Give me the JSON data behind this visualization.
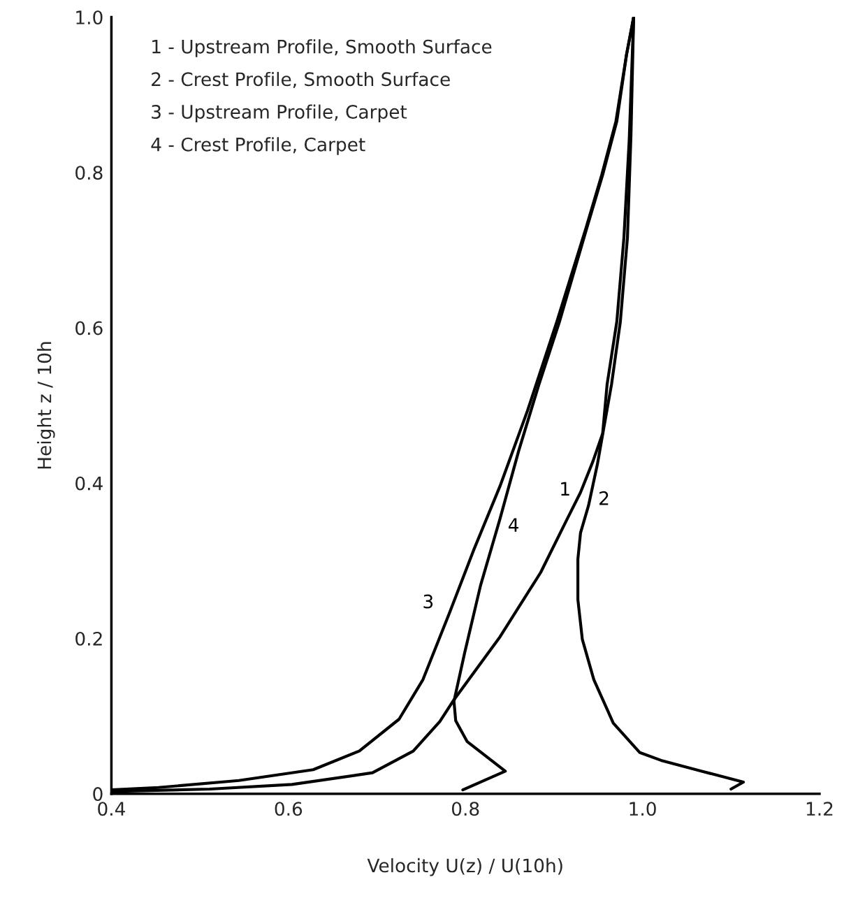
{
  "chart_data": {
    "type": "line",
    "xlabel": "Velocity U(z) / U(10h)",
    "ylabel": "Height z / 10h",
    "xlim": [
      0.4,
      1.2
    ],
    "xticks": [
      0.4,
      0.6,
      0.8,
      {
        "value": 1.0,
        "label": "1.0"
      },
      1.2
    ],
    "ylim": [
      0,
      1.0
    ],
    "yticks": [
      0,
      0.2,
      0.4,
      0.6,
      0.8,
      {
        "value": 1.0,
        "label": "1.0"
      }
    ],
    "grid": false,
    "legend": false,
    "marker": "none",
    "line_style": "solid",
    "annotations": [
      "1 - Upstream Profile, Smooth Surface",
      "2 - Crest Profile, Smooth Surface",
      "3 - Upstream Profile, Carpet",
      "4 - Crest Profile, Carpet"
    ],
    "series": [
      {
        "name": "1",
        "color": "#000000",
        "x": [
          0.4,
          0.511,
          0.604,
          0.695,
          0.741,
          0.771,
          0.787,
          0.839,
          0.885,
          0.915,
          0.93,
          0.944,
          0.955,
          0.96,
          0.971,
          0.979,
          0.985,
          0.99
        ],
        "values": [
          0.003,
          0.006,
          0.012,
          0.027,
          0.055,
          0.093,
          0.121,
          0.202,
          0.285,
          0.354,
          0.388,
          0.428,
          0.464,
          0.527,
          0.608,
          0.716,
          0.842,
          1.0
        ]
      },
      {
        "name": "2",
        "color": "#000000",
        "x": [
          1.1,
          1.114,
          1.067,
          1.021,
          0.997,
          0.967,
          0.945,
          0.932,
          0.927,
          0.927,
          0.93,
          0.939,
          0.949,
          0.958,
          0.965,
          0.975,
          0.983,
          0.987,
          0.99
        ],
        "values": [
          0.006,
          0.015,
          0.029,
          0.043,
          0.053,
          0.091,
          0.147,
          0.199,
          0.25,
          0.302,
          0.336,
          0.371,
          0.424,
          0.482,
          0.527,
          0.608,
          0.716,
          0.849,
          1.0
        ]
      },
      {
        "name": "3",
        "color": "#000000",
        "x": [
          0.4,
          0.453,
          0.544,
          0.628,
          0.68,
          0.725,
          0.752,
          0.782,
          0.809,
          0.839,
          0.87,
          0.903,
          0.936,
          0.954,
          0.97,
          0.982,
          0.99
        ],
        "values": [
          0.005,
          0.008,
          0.017,
          0.031,
          0.055,
          0.096,
          0.147,
          0.233,
          0.313,
          0.396,
          0.493,
          0.607,
          0.728,
          0.797,
          0.866,
          0.952,
          1.0
        ]
      },
      {
        "name": "4",
        "color": "#000000",
        "x": [
          0.797,
          0.845,
          0.802,
          0.789,
          0.787,
          0.799,
          0.817,
          0.839,
          0.86,
          0.883,
          0.906,
          0.937,
          0.955,
          0.971,
          0.982,
          0.99
        ],
        "values": [
          0.005,
          0.029,
          0.067,
          0.094,
          0.119,
          0.181,
          0.268,
          0.354,
          0.441,
          0.527,
          0.607,
          0.728,
          0.797,
          0.866,
          0.952,
          1.0
        ]
      }
    ]
  }
}
